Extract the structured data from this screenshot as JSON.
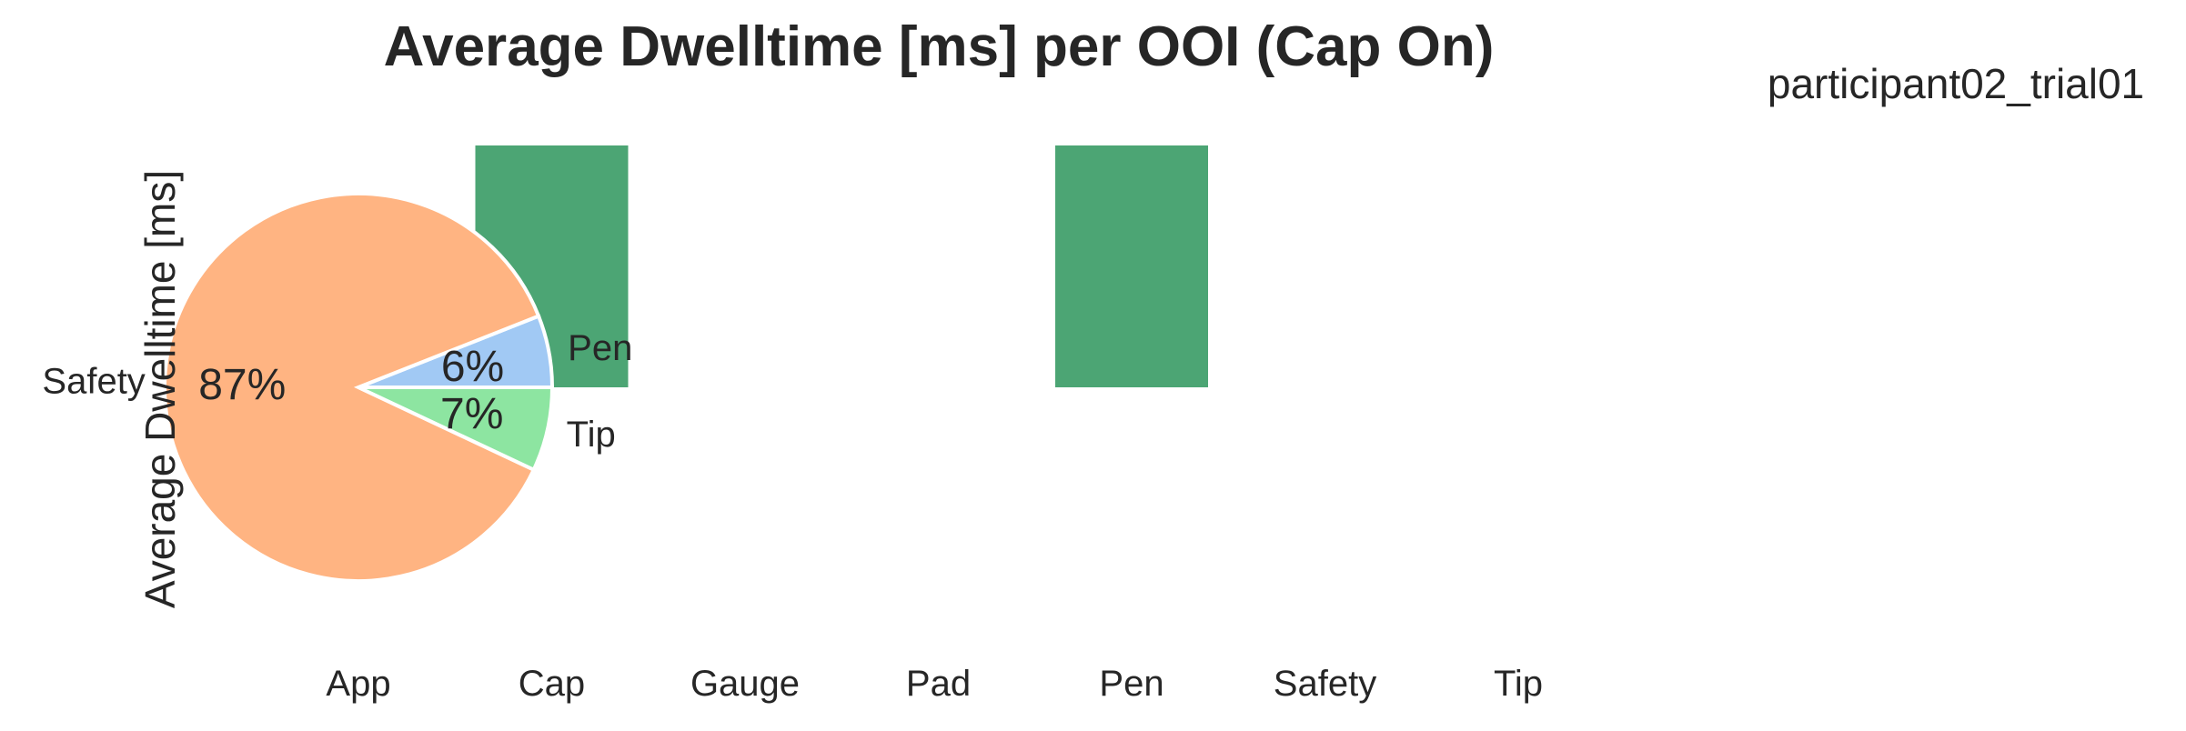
{
  "chart_data": [
    {
      "type": "bar",
      "title": "Average Dwelltime [ms] per OOI (Cap On)",
      "ylabel": "Average Dwelltime [ms]",
      "categories": [
        "App",
        "Cap",
        "Gauge",
        "Pad",
        "Pen",
        "Safety",
        "Tip"
      ],
      "values": [
        0,
        1,
        0,
        0,
        1,
        0,
        0
      ],
      "bar_color": "#4ca574",
      "grid": false
    },
    {
      "type": "pie",
      "title": "participant02_trial01",
      "slices": [
        {
          "label": "Pen",
          "value": 6,
          "pct_label": "6%",
          "color": "#a1c9f4"
        },
        {
          "label": "Safety",
          "value": 87,
          "pct_label": "87%",
          "color": "#ffb482"
        },
        {
          "label": "Tip",
          "value": 7,
          "pct_label": "7%",
          "color": "#8de5a1"
        }
      ]
    }
  ]
}
